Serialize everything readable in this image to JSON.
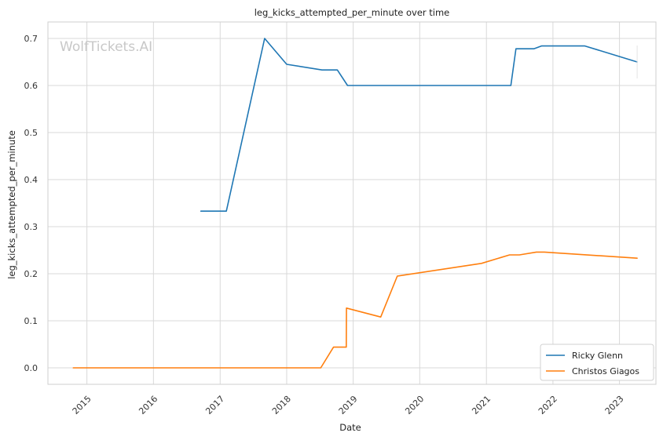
{
  "chart_data": {
    "type": "line",
    "title": "leg_kicks_attempted_per_minute over time",
    "xlabel": "Date",
    "ylabel": "leg_kicks_attempted_per_minute",
    "watermark": "WolfTickets.AI",
    "x_axis_type": "date",
    "xlim": [
      "2014-06-01",
      "2023-07-20"
    ],
    "ylim": [
      -0.035,
      0.735
    ],
    "x_ticks": [
      "2015",
      "2016",
      "2017",
      "2018",
      "2019",
      "2020",
      "2021",
      "2022",
      "2023"
    ],
    "y_ticks": [
      "0.0",
      "0.1",
      "0.2",
      "0.3",
      "0.4",
      "0.5",
      "0.6",
      "0.7"
    ],
    "grid": true,
    "legend_position": "lower-right",
    "series": [
      {
        "name": "Ricky Glenn",
        "color": "#1f77b4",
        "points": [
          {
            "x": "2016-09-17",
            "y": 0.333
          },
          {
            "x": "2017-02-04",
            "y": 0.333
          },
          {
            "x": "2017-09-02",
            "y": 0.7
          },
          {
            "x": "2018-01-01",
            "y": 0.645
          },
          {
            "x": "2018-07-14",
            "y": 0.633
          },
          {
            "x": "2018-10-06",
            "y": 0.633
          },
          {
            "x": "2018-12-01",
            "y": 0.6
          },
          {
            "x": "2021-05-15",
            "y": 0.6
          },
          {
            "x": "2021-06-12",
            "y": 0.678
          },
          {
            "x": "2021-09-18",
            "y": 0.678
          },
          {
            "x": "2021-10-30",
            "y": 0.684
          },
          {
            "x": "2022-06-25",
            "y": 0.684
          },
          {
            "x": "2023-04-08",
            "y": 0.65
          }
        ]
      },
      {
        "name": "Christos Giagos",
        "color": "#ff7f0e",
        "points": [
          {
            "x": "2014-10-18",
            "y": 0.0
          },
          {
            "x": "2018-07-07",
            "y": 0.0
          },
          {
            "x": "2018-09-15",
            "y": 0.044
          },
          {
            "x": "2018-11-24",
            "y": 0.044
          },
          {
            "x": "2018-11-25",
            "y": 0.127
          },
          {
            "x": "2019-06-01",
            "y": 0.108
          },
          {
            "x": "2019-08-31",
            "y": 0.195
          },
          {
            "x": "2020-12-05",
            "y": 0.222
          },
          {
            "x": "2021-05-08",
            "y": 0.24
          },
          {
            "x": "2021-07-01",
            "y": 0.24
          },
          {
            "x": "2021-10-02",
            "y": 0.246
          },
          {
            "x": "2021-11-15",
            "y": 0.246
          },
          {
            "x": "2023-04-08",
            "y": 0.233
          }
        ]
      }
    ]
  }
}
